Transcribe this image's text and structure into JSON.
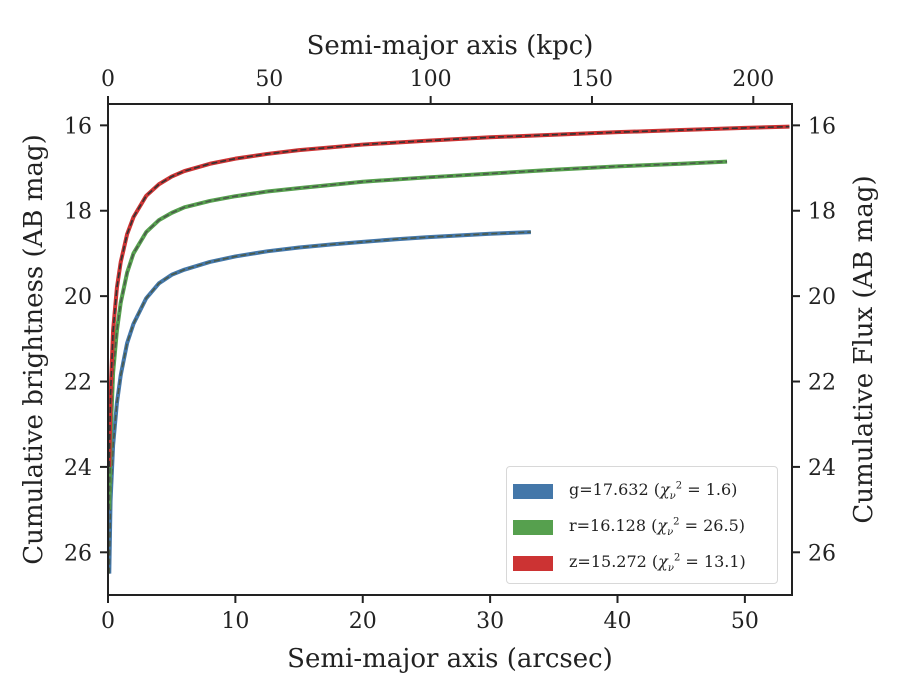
{
  "chart_data": {
    "type": "line",
    "x_bottom": {
      "label": "Semi-major axis (arcsec)",
      "range": [
        0,
        53.7
      ],
      "ticks": [
        0,
        10,
        20,
        30,
        40,
        50
      ]
    },
    "x_top": {
      "label": "Semi-major axis (kpc)",
      "range": [
        0,
        212
      ],
      "ticks": [
        0,
        50,
        100,
        150,
        200
      ]
    },
    "y_left": {
      "label": "Cumulative brightness (AB mag)",
      "range": [
        27,
        15.5
      ],
      "inverted": true,
      "ticks": [
        16,
        18,
        20,
        22,
        24,
        26
      ]
    },
    "y_right": {
      "label": "Cumulative Flux (AB mag)",
      "range": [
        27,
        15.5
      ],
      "inverted": true,
      "ticks": [
        16,
        18,
        20,
        22,
        24,
        26
      ]
    },
    "grid": false,
    "legend_position": "lower-right",
    "series": [
      {
        "band": "g",
        "legend": {
          "prefix": "g=17.632",
          "chi2": "1.6"
        },
        "color": "#4477a9",
        "fit_color": "#4a5a4a",
        "x": [
          0.1,
          0.2,
          0.4,
          0.7,
          1.0,
          1.5,
          2,
          3,
          4,
          5,
          6,
          8,
          10,
          12.5,
          15,
          17.5,
          20,
          22.5,
          25,
          27.5,
          30,
          33.2
        ],
        "mag": [
          26.5,
          24.8,
          23.5,
          22.5,
          21.85,
          21.1,
          20.65,
          20.05,
          19.7,
          19.5,
          19.38,
          19.2,
          19.07,
          18.95,
          18.86,
          18.79,
          18.73,
          18.67,
          18.62,
          18.58,
          18.54,
          18.5
        ]
      },
      {
        "band": "r",
        "legend": {
          "prefix": "r=16.128",
          "chi2": "26.5"
        },
        "color": "#56a04e",
        "fit_color": "#4a5a4a",
        "x": [
          0.1,
          0.2,
          0.4,
          0.7,
          1.0,
          1.5,
          2,
          3,
          4,
          5,
          6,
          8,
          10,
          12.5,
          15,
          20,
          25,
          30,
          35,
          40,
          45,
          48.6
        ],
        "mag": [
          25.0,
          23.3,
          21.8,
          20.8,
          20.15,
          19.45,
          19.0,
          18.5,
          18.22,
          18.05,
          17.92,
          17.77,
          17.66,
          17.55,
          17.47,
          17.32,
          17.22,
          17.13,
          17.04,
          16.96,
          16.9,
          16.85
        ]
      },
      {
        "band": "z",
        "legend": {
          "prefix": "z=15.272",
          "chi2": "13.1"
        },
        "color": "#cc3333",
        "fit_color": "#333333",
        "x": [
          0.1,
          0.2,
          0.4,
          0.7,
          1.0,
          1.5,
          2,
          3,
          4,
          5,
          6,
          8,
          10,
          12.5,
          15,
          20,
          25,
          30,
          35,
          40,
          45,
          50,
          53.5
        ],
        "mag": [
          24.0,
          22.3,
          20.8,
          19.8,
          19.2,
          18.55,
          18.15,
          17.65,
          17.38,
          17.2,
          17.07,
          16.9,
          16.78,
          16.67,
          16.58,
          16.45,
          16.36,
          16.28,
          16.22,
          16.16,
          16.11,
          16.06,
          16.03
        ]
      }
    ]
  }
}
